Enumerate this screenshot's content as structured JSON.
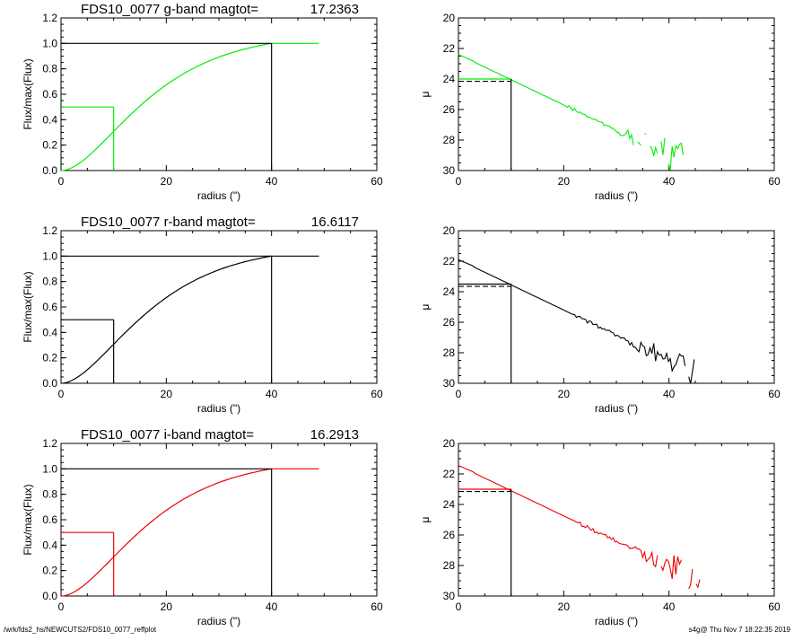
{
  "colors": {
    "g": "#00ee00",
    "r": "#000000",
    "i": "#ee0000",
    "axes": "#000000"
  },
  "footer": {
    "path": "/wrk/fds2_hs/NEWCUTS2/FDS10_0077_reffplot",
    "stamp": "s4g@  Thu Nov  7 18:22:35 2019"
  },
  "chart_data": [
    {
      "type": "line",
      "panel": "g-growth",
      "title_left": "FDS10_0077 g-band  magtot=",
      "title_value": "17.2363",
      "xlabel": "radius (\")",
      "ylabel": "Flux/max(Flux)",
      "xlim": [
        0,
        60
      ],
      "ylim": [
        0,
        1.2
      ],
      "xticks": [
        "0",
        "20",
        "40",
        "60"
      ],
      "yticks": [
        "0.0",
        "0.2",
        "0.4",
        "0.6",
        "0.8",
        "1.0",
        "1.2"
      ],
      "band": "g",
      "curve": {
        "r_end": 49,
        "scale": 9.5
      },
      "lines": {
        "half_radius": 10,
        "half_value": 0.5,
        "full_radius": 40,
        "full_value": 1.0
      }
    },
    {
      "type": "line",
      "panel": "g-profile",
      "xlabel": "radius (\")",
      "ylabel": "μ",
      "xlim": [
        0,
        60
      ],
      "ylim": [
        30,
        20
      ],
      "inverted": true,
      "xticks": [
        "0",
        "20",
        "40",
        "60"
      ],
      "yticks": [
        "20",
        "22",
        "24",
        "26",
        "28",
        "30"
      ],
      "band": "g",
      "profile": {
        "mu0": 22.4,
        "slope": 0.165,
        "noise_start": 28,
        "r_end": 44
      },
      "lines": {
        "reff": 10,
        "mu_eff": 24.0,
        "mu_mean": 24.15
      }
    },
    {
      "type": "line",
      "panel": "r-growth",
      "title_left": "FDS10_0077 r-band  magtot=",
      "title_value": "16.6117",
      "xlabel": "radius (\")",
      "ylabel": "Flux/max(Flux)",
      "xlim": [
        0,
        60
      ],
      "ylim": [
        0,
        1.2
      ],
      "xticks": [
        "0",
        "20",
        "40",
        "60"
      ],
      "yticks": [
        "0.0",
        "0.2",
        "0.4",
        "0.6",
        "0.8",
        "1.0",
        "1.2"
      ],
      "band": "r",
      "curve": {
        "r_end": 49,
        "scale": 9.5
      },
      "lines": {
        "half_radius": 10,
        "half_value": 0.5,
        "full_radius": 40,
        "full_value": 1.0
      }
    },
    {
      "type": "line",
      "panel": "r-profile",
      "xlabel": "radius (\")",
      "ylabel": "μ",
      "xlim": [
        0,
        60
      ],
      "ylim": [
        30,
        20
      ],
      "inverted": true,
      "xticks": [
        "0",
        "20",
        "40",
        "60"
      ],
      "yticks": [
        "20",
        "22",
        "24",
        "26",
        "28",
        "30"
      ],
      "band": "r",
      "profile": {
        "mu0": 21.9,
        "slope": 0.165,
        "noise_start": 30,
        "r_end": 45
      },
      "lines": {
        "reff": 10,
        "mu_eff": 23.5,
        "mu_mean": 23.65
      }
    },
    {
      "type": "line",
      "panel": "i-growth",
      "title_left": "FDS10_0077 i-band  magtot=",
      "title_value": "16.2913",
      "xlabel": "radius (\")",
      "ylabel": "Flux/max(Flux)",
      "xlim": [
        0,
        60
      ],
      "ylim": [
        0,
        1.2
      ],
      "xticks": [
        "0",
        "20",
        "40",
        "60"
      ],
      "yticks": [
        "0.0",
        "0.2",
        "0.4",
        "0.6",
        "0.8",
        "1.0",
        "1.2"
      ],
      "band": "i",
      "curve": {
        "r_end": 49,
        "scale": 9.5
      },
      "lines": {
        "half_radius": 10,
        "half_value": 0.5,
        "full_radius": 40,
        "full_value": 1.0
      }
    },
    {
      "type": "line",
      "panel": "i-profile",
      "xlabel": "radius (\")",
      "ylabel": "μ",
      "xlim": [
        0,
        60
      ],
      "ylim": [
        30,
        20
      ],
      "inverted": true,
      "xticks": [
        "0",
        "20",
        "40",
        "60"
      ],
      "yticks": [
        "20",
        "22",
        "24",
        "26",
        "28",
        "30"
      ],
      "band": "i",
      "profile": {
        "mu0": 21.45,
        "slope": 0.165,
        "noise_start": 31,
        "r_end": 46
      },
      "lines": {
        "reff": 10,
        "mu_eff": 23.0,
        "mu_mean": 23.15
      }
    }
  ]
}
